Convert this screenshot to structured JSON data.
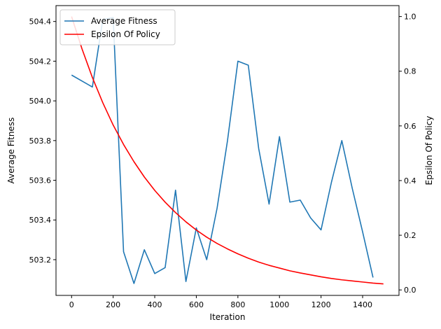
{
  "chart_data": {
    "type": "line",
    "title": "",
    "xlabel": "Iteration",
    "ylabel_left": "Average Fitness",
    "ylabel_right": "Epsilon Of Policy",
    "xlim": [
      -75,
      1575
    ],
    "ylim_left": [
      503.02,
      504.48
    ],
    "ylim_right": [
      -0.02,
      1.04
    ],
    "xticks": [
      0,
      200,
      400,
      600,
      800,
      1000,
      1200,
      1400
    ],
    "xtick_labels": [
      "0",
      "200",
      "400",
      "600",
      "800",
      "1000",
      "1200",
      "1400"
    ],
    "yticks_left": [
      503.2,
      503.4,
      503.6,
      503.8,
      504.0,
      504.2,
      504.4
    ],
    "ytick_labels_left": [
      "503.2",
      "503.4",
      "503.6",
      "503.8",
      "504.0",
      "504.2",
      "504.4"
    ],
    "yticks_right": [
      0.0,
      0.2,
      0.4,
      0.6,
      0.8,
      1.0
    ],
    "ytick_labels_right": [
      "0.0",
      "0.2",
      "0.4",
      "0.6",
      "0.8",
      "1.0"
    ],
    "grid": false,
    "legend": {
      "position": "top-left",
      "entries": [
        "Average Fitness",
        "Epsilon Of Policy"
      ]
    },
    "series": [
      {
        "name": "Average Fitness",
        "axis": "left",
        "color": "#1f77b4",
        "x": [
          0,
          100,
          150,
          200,
          250,
          300,
          350,
          400,
          450,
          500,
          550,
          600,
          650,
          700,
          750,
          800,
          850,
          900,
          950,
          1000,
          1050,
          1100,
          1150,
          1200,
          1250,
          1300,
          1350,
          1400,
          1450
        ],
        "y": [
          504.13,
          504.07,
          504.41,
          504.42,
          503.24,
          503.08,
          503.25,
          503.13,
          503.16,
          503.55,
          503.09,
          503.36,
          503.2,
          503.46,
          503.8,
          504.2,
          504.18,
          503.76,
          503.48,
          503.82,
          503.49,
          503.5,
          503.41,
          503.35,
          503.59,
          503.8,
          503.56,
          503.34,
          503.11
        ]
      },
      {
        "name": "Epsilon Of Policy",
        "axis": "right",
        "color": "#ff0000",
        "x": [
          0,
          50,
          100,
          150,
          200,
          250,
          300,
          350,
          400,
          450,
          500,
          550,
          600,
          650,
          700,
          750,
          800,
          850,
          900,
          950,
          1000,
          1050,
          1100,
          1150,
          1200,
          1250,
          1300,
          1350,
          1400,
          1450,
          1500
        ],
        "y": [
          1.0,
          0.882,
          0.777,
          0.685,
          0.603,
          0.532,
          0.469,
          0.413,
          0.364,
          0.321,
          0.283,
          0.249,
          0.219,
          0.193,
          0.17,
          0.15,
          0.132,
          0.116,
          0.102,
          0.09,
          0.08,
          0.07,
          0.062,
          0.055,
          0.048,
          0.042,
          0.037,
          0.033,
          0.029,
          0.025,
          0.022
        ]
      }
    ]
  }
}
